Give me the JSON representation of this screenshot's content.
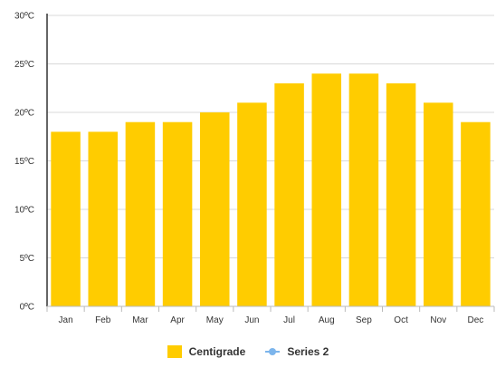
{
  "chart_data": {
    "type": "bar",
    "title": "",
    "xlabel": "",
    "ylabel": "",
    "categories": [
      "Jan",
      "Feb",
      "Mar",
      "Apr",
      "May",
      "Jun",
      "Jul",
      "Aug",
      "Sep",
      "Oct",
      "Nov",
      "Dec"
    ],
    "series": [
      {
        "name": "Centigrade",
        "values": [
          18,
          18,
          19,
          19,
          20,
          21,
          23,
          24,
          24,
          23,
          21,
          19
        ],
        "color": "#FFCC00"
      }
    ],
    "ylim": [
      0,
      30
    ],
    "yticks": [
      "0ºC",
      "5ºC",
      "10ºC",
      "15ºC",
      "20ºC",
      "25ºC",
      "30ºC"
    ],
    "grid": true,
    "legend_position": "bottom",
    "legend": [
      {
        "name": "Centigrade",
        "marker": "bar",
        "color": "#FFCC00"
      },
      {
        "name": "Series 2",
        "marker": "line",
        "color": "#7CB5EC"
      }
    ]
  }
}
